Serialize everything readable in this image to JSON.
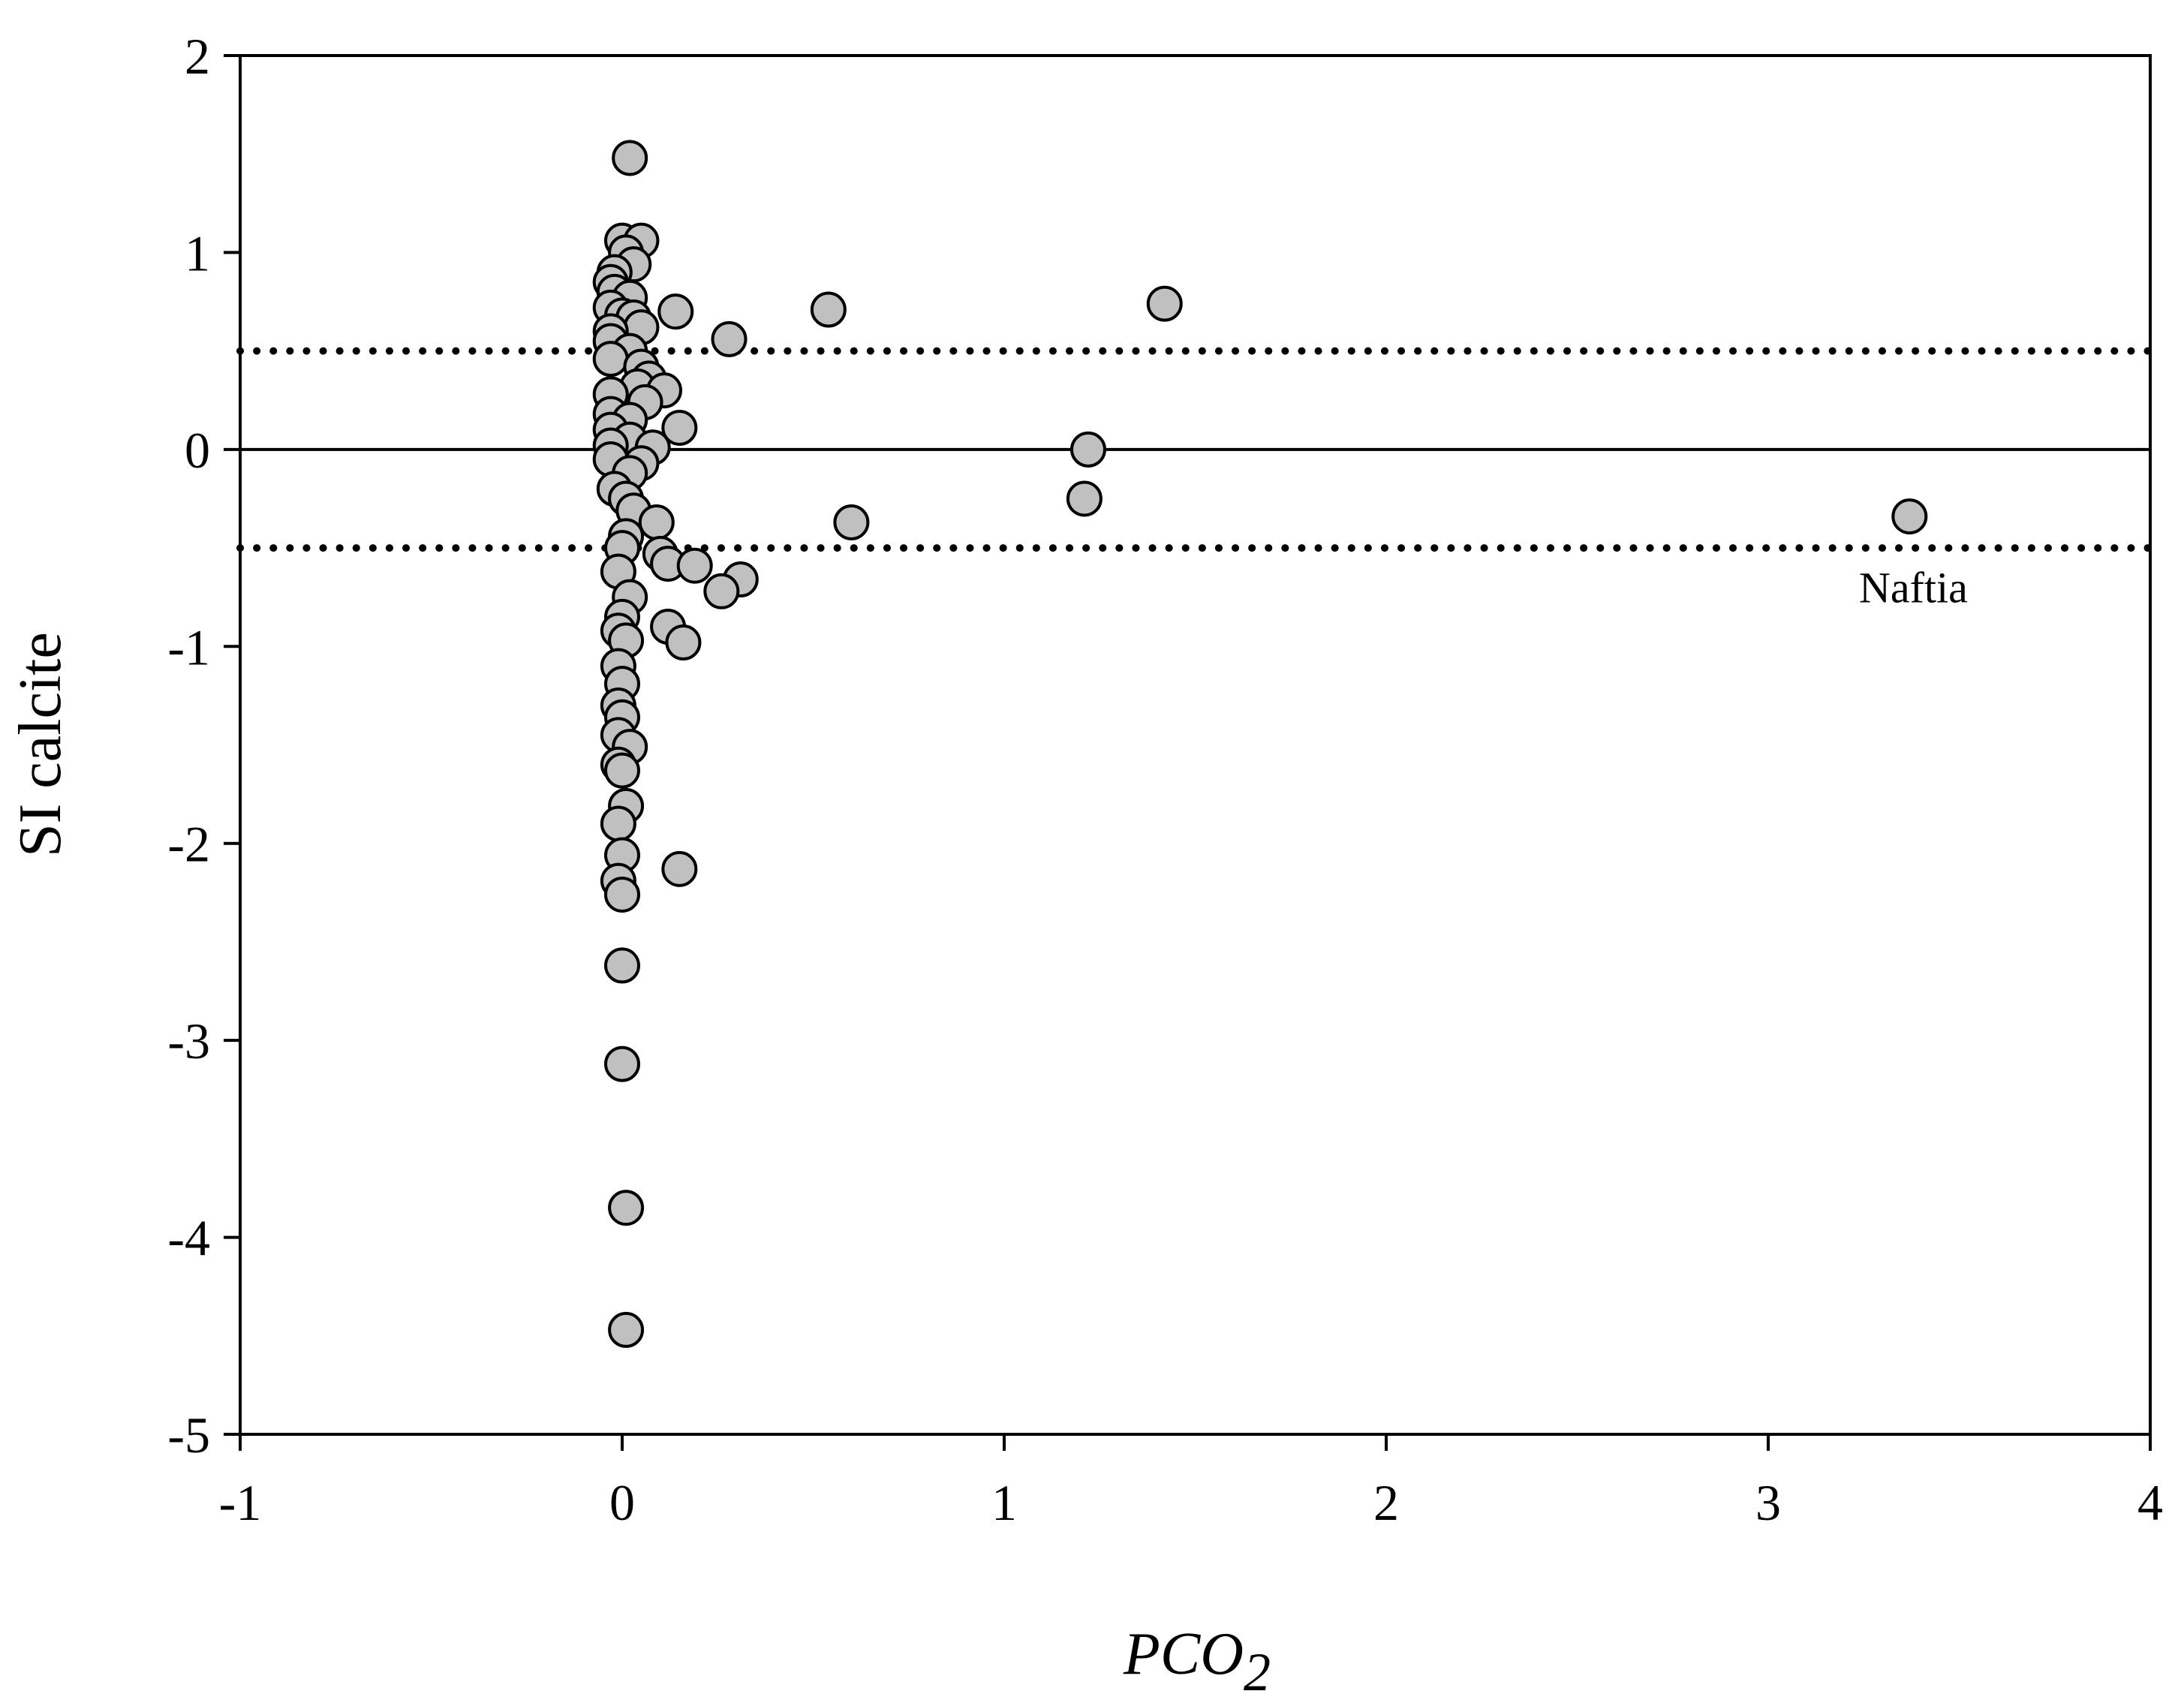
{
  "chart_data": {
    "type": "scatter",
    "title": "",
    "xlabel": "PCO",
    "xlabel_subscript": "2",
    "ylabel": "SI calcite",
    "xlim": [
      -1,
      4
    ],
    "ylim": [
      -5,
      2
    ],
    "x_ticks": [
      "-1",
      "0",
      "1",
      "2",
      "3",
      "4"
    ],
    "y_ticks": [
      "2",
      "1",
      "0",
      "-1",
      "-2",
      "-3",
      "-4",
      "-5"
    ],
    "reference_lines": [
      {
        "y": 0.5,
        "style": "dotted"
      },
      {
        "y": 0.0,
        "style": "solid"
      },
      {
        "y": -0.5,
        "style": "dotted"
      }
    ],
    "annotation": {
      "text": "Naftia",
      "x": 3.38,
      "y": -0.7
    },
    "marker_fill": "#c0c0c0",
    "marker_stroke": "#000000",
    "points": [
      [
        0.02,
        1.48
      ],
      [
        0.0,
        1.06
      ],
      [
        0.05,
        1.06
      ],
      [
        0.01,
        1.0
      ],
      [
        0.03,
        0.94
      ],
      [
        -0.02,
        0.9
      ],
      [
        -0.03,
        0.85
      ],
      [
        -0.02,
        0.8
      ],
      [
        0.02,
        0.77
      ],
      [
        -0.03,
        0.72
      ],
      [
        0.0,
        0.68
      ],
      [
        0.03,
        0.67
      ],
      [
        0.14,
        0.7
      ],
      [
        0.54,
        0.71
      ],
      [
        1.42,
        0.74
      ],
      [
        0.28,
        0.56
      ],
      [
        0.05,
        0.62
      ],
      [
        -0.03,
        0.6
      ],
      [
        -0.03,
        0.55
      ],
      [
        0.02,
        0.5
      ],
      [
        -0.03,
        0.46
      ],
      [
        0.05,
        0.42
      ],
      [
        0.07,
        0.36
      ],
      [
        0.04,
        0.32
      ],
      [
        0.11,
        0.3
      ],
      [
        0.06,
        0.24
      ],
      [
        -0.03,
        0.28
      ],
      [
        -0.03,
        0.18
      ],
      [
        0.02,
        0.15
      ],
      [
        0.15,
        0.11
      ],
      [
        -0.03,
        0.1
      ],
      [
        0.02,
        0.05
      ],
      [
        -0.03,
        0.02
      ],
      [
        0.08,
        0.01
      ],
      [
        1.22,
        0.0
      ],
      [
        0.05,
        -0.07
      ],
      [
        -0.03,
        -0.05
      ],
      [
        0.02,
        -0.12
      ],
      [
        -0.02,
        -0.2
      ],
      [
        0.01,
        -0.25
      ],
      [
        1.21,
        -0.25
      ],
      [
        0.03,
        -0.31
      ],
      [
        0.6,
        -0.37
      ],
      [
        3.37,
        -0.34
      ],
      [
        0.09,
        -0.37
      ],
      [
        0.01,
        -0.44
      ],
      [
        0.0,
        -0.5
      ],
      [
        0.1,
        -0.53
      ],
      [
        0.12,
        -0.58
      ],
      [
        0.19,
        -0.59
      ],
      [
        -0.01,
        -0.62
      ],
      [
        0.31,
        -0.66
      ],
      [
        0.26,
        -0.72
      ],
      [
        0.02,
        -0.75
      ],
      [
        0.0,
        -0.85
      ],
      [
        0.12,
        -0.9
      ],
      [
        -0.01,
        -0.92
      ],
      [
        0.01,
        -0.97
      ],
      [
        0.16,
        -0.98
      ],
      [
        -0.01,
        -1.1
      ],
      [
        0.0,
        -1.19
      ],
      [
        -0.01,
        -1.3
      ],
      [
        0.0,
        -1.36
      ],
      [
        -0.01,
        -1.45
      ],
      [
        0.02,
        -1.51
      ],
      [
        -0.01,
        -1.6
      ],
      [
        0.0,
        -1.63
      ],
      [
        0.01,
        -1.81
      ],
      [
        -0.01,
        -1.9
      ],
      [
        0.0,
        -2.06
      ],
      [
        0.15,
        -2.13
      ],
      [
        -0.01,
        -2.19
      ],
      [
        0.0,
        -2.26
      ],
      [
        0.0,
        -2.62
      ],
      [
        0.0,
        -3.12
      ],
      [
        0.01,
        -3.85
      ],
      [
        0.01,
        -4.47
      ]
    ]
  }
}
